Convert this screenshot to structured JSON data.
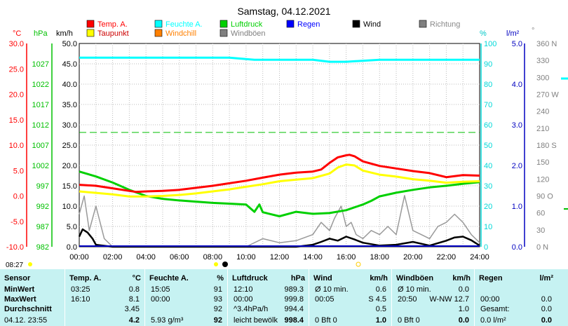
{
  "title": "Samstag, 04.12.2021",
  "chart_data": {
    "type": "line",
    "x_ticks": [
      "00:00",
      "02:00",
      "04:00",
      "06:00",
      "08:00",
      "10:00",
      "12:00",
      "14:00",
      "16:00",
      "18:00",
      "20:00",
      "22:00",
      "24:00"
    ],
    "xlim": [
      0,
      24
    ],
    "axes": {
      "temp": {
        "unit": "°C",
        "ticks": [
          "30.0",
          "25.0",
          "20.0",
          "15.0",
          "10.0",
          "5.0",
          "0.0",
          "-5.0",
          "-10.0"
        ],
        "range": [
          -10,
          30
        ],
        "color": "#ff0000"
      },
      "pressure": {
        "unit": "hPa",
        "ticks": [
          "1027",
          "1022",
          "1017",
          "1012",
          "1007",
          "1002",
          "997",
          "992",
          "987",
          "982"
        ],
        "range": [
          982,
          1032
        ],
        "color": "#00c000"
      },
      "wind": {
        "unit": "km/h",
        "ticks": [
          "50.0",
          "45.0",
          "40.0",
          "35.0",
          "30.0",
          "25.0",
          "20.0",
          "15.0",
          "10.0",
          "5.0",
          "0.0"
        ],
        "range": [
          0,
          50
        ],
        "color": "#000000"
      },
      "humidity": {
        "unit": "%",
        "ticks": [
          "100",
          "90",
          "80",
          "70",
          "60",
          "50",
          "40",
          "30",
          "20",
          "10",
          "0"
        ],
        "range": [
          0,
          100
        ],
        "color": "#00d8d8"
      },
      "rain": {
        "unit": "l/m²",
        "ticks": [
          "5.0",
          "4.0",
          "3.0",
          "2.0",
          "1.0",
          "0.0"
        ],
        "range": [
          0,
          5
        ],
        "color": "#0000c0"
      },
      "direction": {
        "unit": "°",
        "ticks": [
          "360 N",
          "330",
          "300",
          "270 W",
          "240",
          "210",
          "180 S",
          "150",
          "120",
          "90 O",
          "60",
          "30",
          "0 N"
        ],
        "range": [
          0,
          360
        ],
        "color": "#808080"
      }
    },
    "legend": [
      {
        "name": "Temp. A.",
        "color": "#ff0000"
      },
      {
        "name": "Feuchte A.",
        "color": "#00ffff"
      },
      {
        "name": "Luftdruck",
        "color": "#00d000"
      },
      {
        "name": "Regen",
        "color": "#0000ff"
      },
      {
        "name": "Wind",
        "color": "#000000"
      },
      {
        "name": "Richtung",
        "color": "#808080"
      },
      {
        "name": "Taupunkt",
        "color": "#ffff00"
      },
      {
        "name": "Windchill",
        "color": "#ff8000"
      },
      {
        "name": "Windböen",
        "color": "#808080"
      }
    ],
    "series": [
      {
        "name": "Temp. A.",
        "axis": "temp",
        "color": "#ff0000",
        "x": [
          0,
          1,
          2,
          3,
          3.4,
          4,
          5,
          6,
          7,
          8,
          9,
          10,
          11,
          12,
          13,
          14,
          14.5,
          15,
          15.5,
          16,
          16.2,
          16.5,
          17,
          18,
          19,
          20,
          21,
          22,
          23,
          24
        ],
        "y": [
          2.2,
          2.0,
          1.5,
          1.0,
          0.8,
          0.9,
          1.0,
          1.2,
          1.6,
          2.0,
          2.5,
          3.0,
          3.6,
          4.2,
          4.6,
          4.8,
          5.2,
          6.5,
          7.6,
          8.0,
          8.1,
          7.8,
          6.8,
          5.9,
          5.4,
          4.9,
          4.5,
          3.7,
          4.1,
          4.0
        ]
      },
      {
        "name": "Taupunkt",
        "axis": "temp",
        "color": "#ffff00",
        "x": [
          0,
          1,
          2,
          3,
          4,
          5,
          6,
          7,
          8,
          9,
          10,
          11,
          12,
          13,
          14,
          15,
          15.5,
          16,
          16.5,
          17,
          18,
          19,
          20,
          21,
          22,
          23,
          24
        ],
        "y": [
          0.9,
          0.6,
          0.3,
          -0.1,
          -0.1,
          0.0,
          0.2,
          0.5,
          0.9,
          1.3,
          1.8,
          2.3,
          2.9,
          3.2,
          3.5,
          4.4,
          5.6,
          6.2,
          6.0,
          5.0,
          4.2,
          3.8,
          3.3,
          3.0,
          2.6,
          2.8,
          2.9
        ]
      },
      {
        "name": "Luftdruck",
        "axis": "pressure",
        "color": "#00d000",
        "x": [
          0,
          1,
          2,
          3,
          4,
          5,
          6,
          7,
          8,
          9,
          10,
          10.5,
          10.8,
          11,
          12,
          13,
          14,
          15,
          16,
          17,
          17.5,
          18,
          19,
          20,
          21,
          22,
          23,
          24
        ],
        "y": [
          1000.5,
          999.3,
          997.8,
          996.0,
          994.5,
          993.8,
          993.4,
          993.1,
          992.8,
          992.6,
          992.4,
          990.6,
          992.4,
          990.5,
          989.5,
          990.6,
          990.1,
          990.3,
          991.0,
          992.4,
          993.3,
          994.4,
          995.3,
          996.0,
          996.6,
          997.0,
          997.5,
          997.9
        ]
      },
      {
        "name": "Feuchte A.",
        "axis": "humidity",
        "color": "#00ffff",
        "x": [
          0,
          9,
          10.5,
          14,
          15,
          16,
          18,
          24
        ],
        "y": [
          93,
          93,
          92,
          92,
          91,
          91,
          92,
          92
        ]
      },
      {
        "name": "Wind",
        "axis": "wind",
        "color": "#000000",
        "x": [
          0,
          0.2,
          0.5,
          0.8,
          1,
          2,
          3,
          4,
          5,
          6,
          7,
          8,
          9,
          10,
          11,
          12,
          13,
          14,
          14.5,
          15,
          15.5,
          16,
          16.5,
          17,
          18,
          19,
          20,
          21,
          22,
          22.5,
          23,
          23.5,
          24
        ],
        "y": [
          2.5,
          4.3,
          3.5,
          2.0,
          0.5,
          0,
          0,
          0,
          0,
          0,
          0,
          0,
          0,
          0,
          0,
          0,
          0,
          0.5,
          1.2,
          2.0,
          1.5,
          2.5,
          1.8,
          1.0,
          0.3,
          0.5,
          1.2,
          0.3,
          1.5,
          2.3,
          2.5,
          1.6,
          0.3
        ]
      },
      {
        "name": "Windböen",
        "axis": "wind",
        "color": "#999999",
        "x": [
          0,
          0.3,
          0.6,
          1,
          1.5,
          2,
          8,
          9,
          10,
          11,
          12,
          13,
          14,
          14.5,
          15,
          15.3,
          15.7,
          16,
          16.3,
          16.6,
          17,
          17.5,
          18,
          18.5,
          19,
          19.5,
          20,
          20.5,
          21,
          21.5,
          22,
          22.5,
          23,
          23.5,
          24
        ],
        "y": [
          8,
          12.5,
          4,
          10,
          2,
          0,
          0,
          0,
          0,
          2,
          1,
          1.5,
          3,
          6,
          4,
          7,
          10,
          5,
          6,
          3,
          2,
          4,
          3,
          5,
          3,
          12.6,
          4,
          3,
          2,
          5,
          6,
          8,
          6,
          3,
          1
        ]
      }
    ],
    "reference_line": {
      "axis": "temp",
      "value": 12.5,
      "color": "#00c000",
      "style": "dashed"
    },
    "grid": true
  },
  "bottom": {
    "time": "08:27"
  },
  "table": {
    "sensor": {
      "header": "Sensor",
      "rows": [
        "MinWert",
        "MaxWert",
        "Durchschnitt",
        "04.12. 23:55"
      ]
    },
    "temp": {
      "header": "Temp. A.",
      "unit": "°C",
      "rows": [
        [
          "03:25",
          "0.8"
        ],
        [
          "16:10",
          "8.1"
        ],
        [
          "",
          "3.45"
        ],
        [
          "",
          "4.2"
        ]
      ]
    },
    "humidity": {
      "header": "Feuchte A.",
      "unit": "%",
      "rows": [
        [
          "15:05",
          "91"
        ],
        [
          "00:00",
          "93"
        ],
        [
          "",
          "92"
        ],
        [
          "5.93 g/m³",
          "92"
        ]
      ]
    },
    "pressure": {
      "header": "Luftdruck",
      "unit": "hPa",
      "rows": [
        [
          "12:10",
          "989.3"
        ],
        [
          "00:00",
          "999.8"
        ],
        [
          "^3.4hPa/h",
          "994.4"
        ],
        [
          "leicht bewölk",
          "998.4"
        ]
      ]
    },
    "wind": {
      "header": "Wind",
      "unit": "km/h",
      "rows": [
        [
          "Ø 10 min.",
          "0.6"
        ],
        [
          "00:05",
          "S 4.5"
        ],
        [
          "",
          "0.5"
        ],
        [
          "0 Bft 0",
          "1.0"
        ]
      ]
    },
    "gusts": {
      "header": "Windböen",
      "unit": "km/h",
      "rows": [
        [
          "Ø 10 min.",
          "0.0"
        ],
        [
          "20:50",
          "W-NW 12.7"
        ],
        [
          "",
          "1.0"
        ],
        [
          "0 Bft 0",
          "0.0"
        ]
      ]
    },
    "rain": {
      "header": "Regen",
      "unit": "l/m²",
      "rows": [
        [
          "",
          ""
        ],
        [
          "00:00",
          "0.0"
        ],
        [
          "Gesamt:",
          "0.0"
        ],
        [
          "0.0 l/m²",
          "0.0"
        ]
      ]
    }
  }
}
